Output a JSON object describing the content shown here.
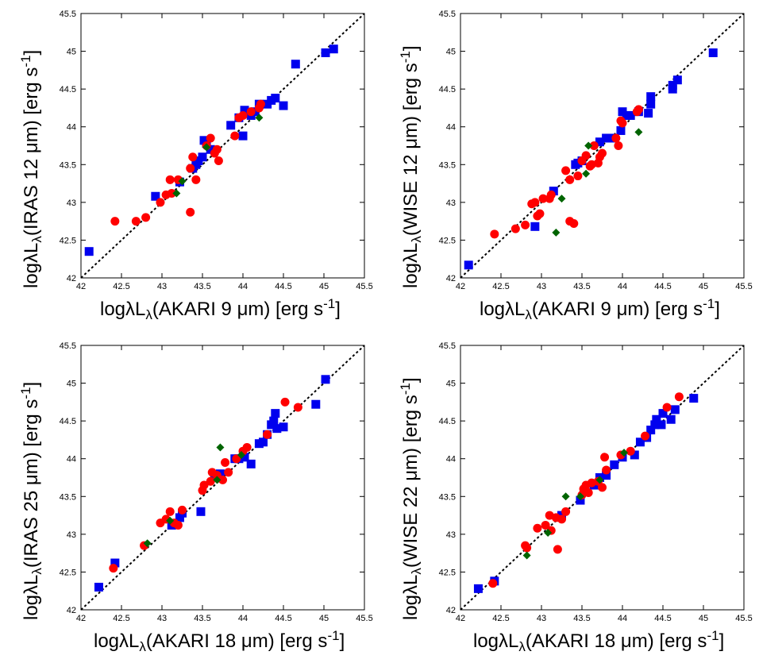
{
  "chart_data": [
    {
      "type": "scatter",
      "xlabel": {
        "pre": "logλL",
        "sub": "λ",
        "mid": "(AKARI 9 μm) [erg s",
        "sup": "-1",
        "post": "]"
      },
      "ylabel": {
        "pre": "logλL",
        "sub": "λ",
        "mid": "(IRAS 12 μm) [erg s",
        "sup": "-1",
        "post": "]"
      },
      "xlim": [
        42,
        45.5
      ],
      "ylim": [
        42,
        45.5
      ],
      "ticks": [
        "42",
        "42.5",
        "43",
        "43.5",
        "44",
        "44.5",
        "45",
        "45.5"
      ],
      "tick_values": [
        42,
        42.5,
        43,
        43.5,
        44,
        44.5,
        45,
        45.5
      ],
      "one_to_one_line": true,
      "series": [
        {
          "marker": "square",
          "color": "#0000ee",
          "points": [
            [
              42.1,
              42.35
            ],
            [
              42.92,
              43.08
            ],
            [
              43.22,
              43.27
            ],
            [
              43.38,
              43.45
            ],
            [
              43.42,
              43.5
            ],
            [
              43.45,
              43.55
            ],
            [
              43.5,
              43.6
            ],
            [
              43.52,
              43.82
            ],
            [
              43.55,
              43.78
            ],
            [
              43.6,
              43.7
            ],
            [
              43.85,
              44.02
            ],
            [
              43.95,
              44.12
            ],
            [
              44.0,
              43.88
            ],
            [
              44.02,
              44.22
            ],
            [
              44.1,
              44.15
            ],
            [
              44.15,
              44.2
            ],
            [
              44.2,
              44.3
            ],
            [
              44.3,
              44.3
            ],
            [
              44.35,
              44.35
            ],
            [
              44.4,
              44.38
            ],
            [
              44.5,
              44.28
            ],
            [
              44.65,
              44.83
            ],
            [
              45.02,
              44.98
            ],
            [
              45.12,
              45.03
            ]
          ]
        },
        {
          "marker": "circle",
          "color": "#ff0000",
          "points": [
            [
              42.42,
              42.75
            ],
            [
              42.68,
              42.75
            ],
            [
              42.8,
              42.8
            ],
            [
              42.98,
              43.0
            ],
            [
              43.05,
              43.1
            ],
            [
              43.12,
              43.12
            ],
            [
              43.1,
              43.3
            ],
            [
              43.2,
              43.3
            ],
            [
              43.35,
              42.87
            ],
            [
              43.35,
              43.45
            ],
            [
              43.38,
              43.6
            ],
            [
              43.42,
              43.3
            ],
            [
              43.55,
              43.75
            ],
            [
              43.6,
              43.85
            ],
            [
              43.65,
              43.65
            ],
            [
              43.68,
              43.7
            ],
            [
              43.7,
              43.55
            ],
            [
              43.9,
              43.88
            ],
            [
              43.95,
              44.12
            ],
            [
              44.0,
              44.15
            ],
            [
              44.1,
              44.2
            ],
            [
              44.2,
              44.25
            ],
            [
              44.22,
              44.3
            ]
          ]
        },
        {
          "marker": "diamond",
          "color": "#006400",
          "points": [
            [
              43.18,
              43.12
            ],
            [
              43.25,
              43.28
            ],
            [
              43.55,
              43.73
            ],
            [
              44.2,
              44.12
            ]
          ]
        }
      ]
    },
    {
      "type": "scatter",
      "xlabel": {
        "pre": "logλL",
        "sub": "λ",
        "mid": "(AKARI 9 μm) [erg s",
        "sup": "-1",
        "post": "]"
      },
      "ylabel": {
        "pre": "logλL",
        "sub": "λ",
        "mid": "(WISE 12 μm) [erg s",
        "sup": "-1",
        "post": "]"
      },
      "xlim": [
        42,
        45.5
      ],
      "ylim": [
        42,
        45.5
      ],
      "ticks": [
        "42",
        "42.5",
        "43",
        "43.5",
        "44",
        "44.5",
        "45",
        "45.5"
      ],
      "tick_values": [
        42,
        42.5,
        43,
        43.5,
        44,
        44.5,
        45,
        45.5
      ],
      "one_to_one_line": true,
      "series": [
        {
          "marker": "square",
          "color": "#0000ee",
          "points": [
            [
              42.1,
              42.17
            ],
            [
              42.92,
              42.68
            ],
            [
              43.15,
              43.15
            ],
            [
              43.42,
              43.5
            ],
            [
              43.45,
              43.52
            ],
            [
              43.5,
              43.55
            ],
            [
              43.72,
              43.8
            ],
            [
              43.8,
              43.85
            ],
            [
              43.9,
              43.85
            ],
            [
              43.98,
              43.95
            ],
            [
              44.0,
              44.2
            ],
            [
              44.05,
              44.15
            ],
            [
              44.1,
              44.15
            ],
            [
              44.2,
              44.2
            ],
            [
              44.32,
              44.18
            ],
            [
              44.35,
              44.3
            ],
            [
              44.35,
              44.4
            ],
            [
              44.62,
              44.5
            ],
            [
              44.62,
              44.55
            ],
            [
              44.68,
              44.62
            ],
            [
              45.12,
              44.98
            ]
          ]
        },
        {
          "marker": "circle",
          "color": "#ff0000",
          "points": [
            [
              42.42,
              42.58
            ],
            [
              42.68,
              42.65
            ],
            [
              42.8,
              42.7
            ],
            [
              42.88,
              42.98
            ],
            [
              42.92,
              43.0
            ],
            [
              42.95,
              42.82
            ],
            [
              42.98,
              42.85
            ],
            [
              43.02,
              43.05
            ],
            [
              43.1,
              43.05
            ],
            [
              43.12,
              43.1
            ],
            [
              43.3,
              43.42
            ],
            [
              43.35,
              43.3
            ],
            [
              43.35,
              42.75
            ],
            [
              43.4,
              42.72
            ],
            [
              43.45,
              43.35
            ],
            [
              43.5,
              43.55
            ],
            [
              43.55,
              43.62
            ],
            [
              43.6,
              43.48
            ],
            [
              43.62,
              43.5
            ],
            [
              43.65,
              43.75
            ],
            [
              43.7,
              43.52
            ],
            [
              43.72,
              43.6
            ],
            [
              43.75,
              43.65
            ],
            [
              43.92,
              43.85
            ],
            [
              43.95,
              43.75
            ],
            [
              43.98,
              44.08
            ],
            [
              44.0,
              44.05
            ],
            [
              44.18,
              44.2
            ],
            [
              44.2,
              44.23
            ]
          ]
        },
        {
          "marker": "diamond",
          "color": "#006400",
          "points": [
            [
              43.18,
              42.6
            ],
            [
              43.25,
              43.05
            ],
            [
              43.55,
              43.38
            ],
            [
              43.58,
              43.75
            ],
            [
              44.2,
              43.93
            ]
          ]
        }
      ]
    },
    {
      "type": "scatter",
      "xlabel": {
        "pre": "logλL",
        "sub": "λ",
        "mid": "(AKARI 18 μm) [erg s",
        "sup": "-1",
        "post": "]"
      },
      "ylabel": {
        "pre": "logλL",
        "sub": "λ",
        "mid": "(IRAS 25 μm) [erg s",
        "sup": "-1",
        "post": "]"
      },
      "xlim": [
        42,
        45.5
      ],
      "ylim": [
        42,
        45.5
      ],
      "ticks": [
        "42",
        "42.5",
        "43",
        "43.5",
        "44",
        "44.5",
        "45",
        "45.5"
      ],
      "tick_values": [
        42,
        42.5,
        43,
        43.5,
        44,
        44.5,
        45,
        45.5
      ],
      "one_to_one_line": true,
      "series": [
        {
          "marker": "square",
          "color": "#0000ee",
          "points": [
            [
              42.22,
              42.3
            ],
            [
              42.42,
              42.62
            ],
            [
              43.12,
              43.12
            ],
            [
              43.22,
              43.22
            ],
            [
              43.25,
              43.28
            ],
            [
              43.48,
              43.3
            ],
            [
              43.65,
              43.78
            ],
            [
              43.72,
              43.8
            ],
            [
              43.9,
              44.0
            ],
            [
              43.95,
              44.0
            ],
            [
              44.02,
              44.02
            ],
            [
              44.1,
              43.93
            ],
            [
              44.2,
              44.2
            ],
            [
              44.25,
              44.22
            ],
            [
              44.3,
              44.32
            ],
            [
              44.35,
              44.45
            ],
            [
              44.38,
              44.5
            ],
            [
              44.4,
              44.6
            ],
            [
              44.42,
              44.4
            ],
            [
              44.5,
              44.42
            ],
            [
              44.9,
              44.72
            ],
            [
              45.02,
              45.05
            ]
          ]
        },
        {
          "marker": "circle",
          "color": "#ff0000",
          "points": [
            [
              42.4,
              42.55
            ],
            [
              42.78,
              42.85
            ],
            [
              42.98,
              43.15
            ],
            [
              43.05,
              43.2
            ],
            [
              43.1,
              43.3
            ],
            [
              43.15,
              43.15
            ],
            [
              43.2,
              43.12
            ],
            [
              43.25,
              43.32
            ],
            [
              43.5,
              43.58
            ],
            [
              43.52,
              43.65
            ],
            [
              43.6,
              43.7
            ],
            [
              43.62,
              43.82
            ],
            [
              43.68,
              43.78
            ],
            [
              43.75,
              43.72
            ],
            [
              43.78,
              43.95
            ],
            [
              43.82,
              43.82
            ],
            [
              43.92,
              44.0
            ],
            [
              44.0,
              44.1
            ],
            [
              44.05,
              44.15
            ],
            [
              44.3,
              44.32
            ],
            [
              44.52,
              44.75
            ],
            [
              44.68,
              44.68
            ]
          ]
        },
        {
          "marker": "diamond",
          "color": "#006400",
          "points": [
            [
              42.82,
              42.88
            ],
            [
              43.1,
              43.18
            ],
            [
              43.68,
              43.72
            ],
            [
              43.72,
              44.15
            ],
            [
              43.98,
              44.05
            ]
          ]
        }
      ]
    },
    {
      "type": "scatter",
      "xlabel": {
        "pre": "logλL",
        "sub": "λ",
        "mid": "(AKARI 18 μm) [erg s",
        "sup": "-1",
        "post": "]"
      },
      "ylabel": {
        "pre": "logλL",
        "sub": "λ",
        "mid": "(WISE 22 μm) [erg s",
        "sup": "-1",
        "post": "]"
      },
      "xlim": [
        42,
        45.5
      ],
      "ylim": [
        42,
        45.5
      ],
      "ticks": [
        "42",
        "42.5",
        "43",
        "43.5",
        "44",
        "44.5",
        "45",
        "45.5"
      ],
      "tick_values": [
        42,
        42.5,
        43,
        43.5,
        44,
        44.5,
        45,
        45.5
      ],
      "one_to_one_line": true,
      "series": [
        {
          "marker": "square",
          "color": "#0000ee",
          "points": [
            [
              42.22,
              42.28
            ],
            [
              42.42,
              42.38
            ],
            [
              43.25,
              43.25
            ],
            [
              43.48,
              43.45
            ],
            [
              43.65,
              43.65
            ],
            [
              43.72,
              43.75
            ],
            [
              43.8,
              43.78
            ],
            [
              43.9,
              43.92
            ],
            [
              44.0,
              44.02
            ],
            [
              44.15,
              44.05
            ],
            [
              44.22,
              44.22
            ],
            [
              44.3,
              44.28
            ],
            [
              44.35,
              44.38
            ],
            [
              44.4,
              44.45
            ],
            [
              44.42,
              44.52
            ],
            [
              44.48,
              44.45
            ],
            [
              44.5,
              44.6
            ],
            [
              44.6,
              44.52
            ],
            [
              44.65,
              44.65
            ],
            [
              44.88,
              44.8
            ]
          ]
        },
        {
          "marker": "circle",
          "color": "#ff0000",
          "points": [
            [
              42.4,
              42.35
            ],
            [
              42.8,
              42.85
            ],
            [
              42.82,
              42.82
            ],
            [
              42.95,
              43.08
            ],
            [
              43.05,
              43.12
            ],
            [
              43.1,
              43.25
            ],
            [
              43.12,
              43.05
            ],
            [
              43.18,
              43.22
            ],
            [
              43.2,
              42.8
            ],
            [
              43.25,
              43.2
            ],
            [
              43.3,
              43.3
            ],
            [
              43.5,
              43.52
            ],
            [
              43.52,
              43.6
            ],
            [
              43.55,
              43.65
            ],
            [
              43.58,
              43.55
            ],
            [
              43.62,
              43.68
            ],
            [
              43.7,
              43.7
            ],
            [
              43.75,
              43.62
            ],
            [
              43.78,
              44.02
            ],
            [
              43.8,
              43.85
            ],
            [
              43.98,
              44.05
            ],
            [
              44.1,
              44.1
            ],
            [
              44.28,
              44.3
            ],
            [
              44.55,
              44.68
            ],
            [
              44.7,
              44.82
            ]
          ]
        },
        {
          "marker": "diamond",
          "color": "#006400",
          "points": [
            [
              42.82,
              42.72
            ],
            [
              43.08,
              43.02
            ],
            [
              43.3,
              43.5
            ],
            [
              43.48,
              43.5
            ],
            [
              43.72,
              43.72
            ],
            [
              44.02,
              44.08
            ]
          ]
        }
      ]
    }
  ]
}
